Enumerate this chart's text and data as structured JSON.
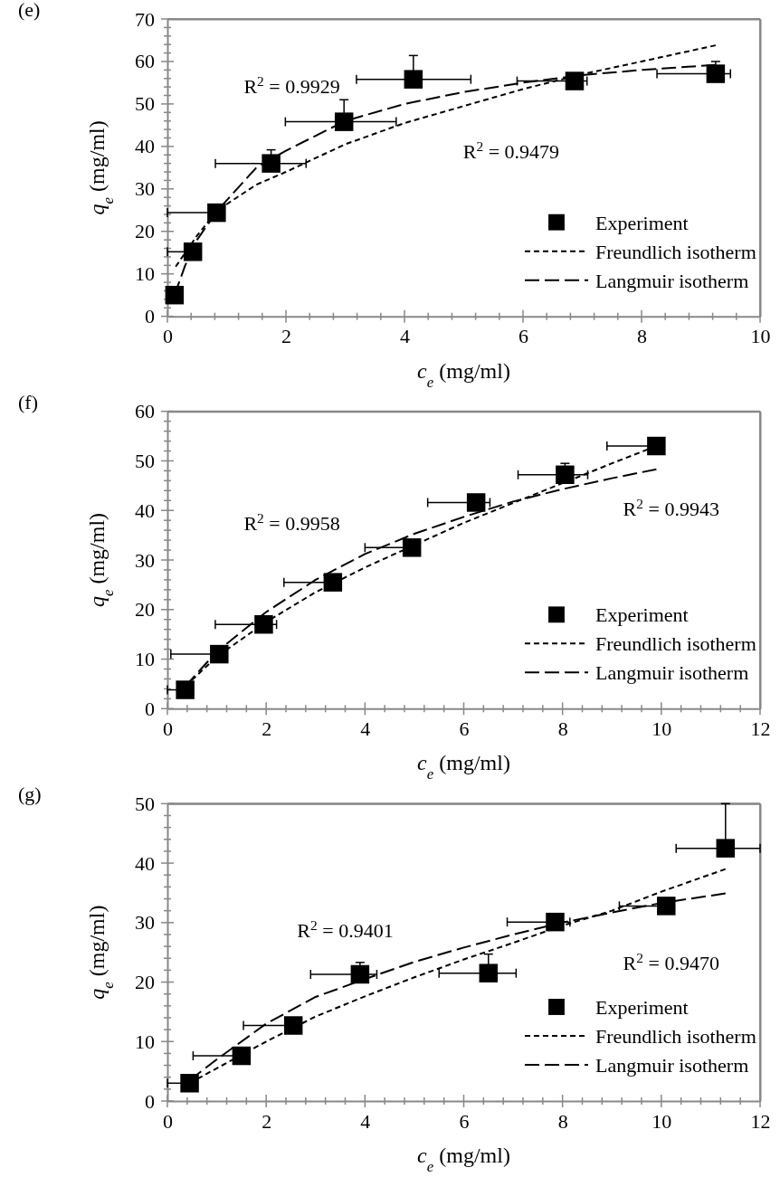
{
  "chart_data": [
    {
      "type": "scatter",
      "title": "(e)",
      "xlabel": "c$_{e}$ (mg/ml)",
      "ylabel": "q$_{e}$ (mg/ml)",
      "legend": "bottom right",
      "grid": false,
      "xlim": [
        0,
        10
      ],
      "ylim": [
        0,
        70
      ],
      "xticks": [
        0,
        {
          "value": 0.4,
          "label": null
        },
        {
          "value": 0.8,
          "label": null
        },
        {
          "value": 1.2,
          "label": null
        },
        {
          "value": 1.6,
          "label": null
        },
        2,
        {
          "value": 2.4,
          "label": null
        },
        {
          "value": 2.8,
          "label": null
        },
        {
          "value": 3.2,
          "label": null
        },
        {
          "value": 3.6,
          "label": null
        },
        4,
        {
          "value": 4.4,
          "label": null
        },
        {
          "value": 4.8,
          "label": null
        },
        {
          "value": 5.2,
          "label": null
        },
        {
          "value": 5.6,
          "label": null
        },
        6,
        {
          "value": 6.4,
          "label": null
        },
        {
          "value": 6.8,
          "label": null
        },
        {
          "value": 7.2,
          "label": null
        },
        {
          "value": 7.6,
          "label": null
        },
        8,
        {
          "value": 8.4,
          "label": null
        },
        {
          "value": 8.8,
          "label": null
        },
        {
          "value": 9.2,
          "label": null
        },
        {
          "value": 9.6,
          "label": null
        },
        10
      ],
      "yticks": [
        0,
        {
          "value": 2,
          "label": null
        },
        {
          "value": 4,
          "label": null
        },
        {
          "value": 6,
          "label": null
        },
        {
          "value": 8,
          "label": null
        },
        10,
        {
          "value": 12,
          "label": null
        },
        {
          "value": 14,
          "label": null
        },
        {
          "value": 16,
          "label": null
        },
        {
          "value": 18,
          "label": null
        },
        20,
        {
          "value": 22,
          "label": null
        },
        {
          "value": 24,
          "label": null
        },
        {
          "value": 26,
          "label": null
        },
        {
          "value": 28,
          "label": null
        },
        30,
        {
          "value": 32,
          "label": null
        },
        {
          "value": 34,
          "label": null
        },
        {
          "value": 36,
          "label": null
        },
        {
          "value": 38,
          "label": null
        },
        40,
        {
          "value": 42,
          "label": null
        },
        {
          "value": 44,
          "label": null
        },
        {
          "value": 46,
          "label": null
        },
        {
          "value": 48,
          "label": null
        },
        50,
        {
          "value": 52,
          "label": null
        },
        {
          "value": 54,
          "label": null
        },
        {
          "value": 56,
          "label": null
        },
        {
          "value": 58,
          "label": null
        },
        60,
        {
          "value": 62,
          "label": null
        },
        {
          "value": 64,
          "label": null
        },
        {
          "value": 66,
          "label": null
        },
        {
          "value": 68,
          "label": null
        },
        70
      ],
      "annotations": [
        "R$^{2}$ = 0.9929",
        "R$^{2}$ = 0.9479"
      ],
      "series": [
        {
          "name": "Experiment",
          "type": "scatter",
          "marker": "square",
          "color": "#000000",
          "x": [
            0.12,
            0.43,
            0.83,
            1.75,
            2.98,
            4.15,
            6.87,
            9.25
          ],
          "values": [
            5,
            15.2,
            24.4,
            36,
            45.8,
            55.8,
            55.4,
            57.1
          ],
          "xerrors": [
            null,
            [
              0,
              0.43
            ],
            [
              0,
              0.83
            ],
            [
              0.81,
              2.34
            ],
            [
              1.99,
              3.86
            ],
            [
              3.19,
              5.12
            ],
            [
              5.9,
              7.08
            ],
            [
              8.26,
              9.5
            ]
          ],
          "errors": [
            null,
            null,
            null,
            [
              36,
              39.2
            ],
            [
              45.8,
              51
            ],
            [
              55.8,
              61.4
            ],
            null,
            [
              57.1,
              60
            ]
          ]
        },
        {
          "name": "Freundlich isotherm",
          "type": "line",
          "line_style": "dotted",
          "color": "#000000",
          "x": [
            0.14,
            0.5,
            0.85,
            1.5,
            2,
            3,
            4,
            5,
            6,
            7,
            8,
            9.25
          ],
          "values": [
            11.7,
            19,
            25,
            31,
            34,
            40.5,
            45.5,
            49.5,
            53.5,
            57,
            60,
            63.8
          ]
        },
        {
          "name": "Langmuir isotherm",
          "type": "line",
          "line_style": "dashed",
          "color": "#000000",
          "x": [
            0.12,
            0.3,
            0.5,
            0.85,
            1.5,
            2,
            3,
            4,
            5,
            6,
            7,
            8,
            9.25
          ],
          "values": [
            5,
            12,
            18,
            25,
            35,
            39,
            46,
            50,
            52.8,
            55,
            56.8,
            58,
            59.2
          ]
        }
      ]
    },
    {
      "type": "scatter",
      "title": "(f)",
      "xlabel": "c$_{e}$ (mg/ml)",
      "ylabel": "q$_{e}$ (mg/ml)",
      "legend": "bottom right",
      "grid": false,
      "xlim": [
        0,
        12
      ],
      "ylim": [
        0,
        60
      ],
      "xticks": [
        0,
        {
          "value": 0.4,
          "label": null
        },
        {
          "value": 0.8,
          "label": null
        },
        {
          "value": 1.2,
          "label": null
        },
        {
          "value": 1.6,
          "label": null
        },
        2,
        {
          "value": 2.4,
          "label": null
        },
        {
          "value": 2.8,
          "label": null
        },
        {
          "value": 3.2,
          "label": null
        },
        {
          "value": 3.6,
          "label": null
        },
        4,
        {
          "value": 4.4,
          "label": null
        },
        {
          "value": 4.8,
          "label": null
        },
        {
          "value": 5.2,
          "label": null
        },
        {
          "value": 5.6,
          "label": null
        },
        6,
        {
          "value": 6.4,
          "label": null
        },
        {
          "value": 6.8,
          "label": null
        },
        {
          "value": 7.2,
          "label": null
        },
        {
          "value": 7.6,
          "label": null
        },
        8,
        {
          "value": 8.4,
          "label": null
        },
        {
          "value": 8.8,
          "label": null
        },
        {
          "value": 9.2,
          "label": null
        },
        {
          "value": 9.6,
          "label": null
        },
        10,
        {
          "value": 10.4,
          "label": null
        },
        {
          "value": 10.8,
          "label": null
        },
        {
          "value": 11.2,
          "label": null
        },
        {
          "value": 11.6,
          "label": null
        },
        12
      ],
      "yticks": [
        0,
        {
          "value": 2,
          "label": null
        },
        {
          "value": 4,
          "label": null
        },
        {
          "value": 6,
          "label": null
        },
        {
          "value": 8,
          "label": null
        },
        10,
        {
          "value": 12,
          "label": null
        },
        {
          "value": 14,
          "label": null
        },
        {
          "value": 16,
          "label": null
        },
        {
          "value": 18,
          "label": null
        },
        20,
        {
          "value": 22,
          "label": null
        },
        {
          "value": 24,
          "label": null
        },
        {
          "value": 26,
          "label": null
        },
        {
          "value": 28,
          "label": null
        },
        30,
        {
          "value": 32,
          "label": null
        },
        {
          "value": 34,
          "label": null
        },
        {
          "value": 36,
          "label": null
        },
        {
          "value": 38,
          "label": null
        },
        40,
        {
          "value": 42,
          "label": null
        },
        {
          "value": 44,
          "label": null
        },
        {
          "value": 46,
          "label": null
        },
        {
          "value": 48,
          "label": null
        },
        50,
        {
          "value": 52,
          "label": null
        },
        {
          "value": 54,
          "label": null
        },
        {
          "value": 56,
          "label": null
        },
        {
          "value": 58,
          "label": null
        },
        60
      ],
      "annotations": [
        "R$^{2}$ = 0.9958",
        "R$^{2}$ = 0.9943"
      ],
      "series": [
        {
          "name": "Experiment",
          "type": "scatter",
          "marker": "square",
          "color": "#000000",
          "x": [
            0.36,
            1.05,
            1.95,
            3.35,
            4.95,
            6.25,
            8.05,
            9.9
          ],
          "values": [
            3.8,
            11,
            17,
            25.5,
            32.5,
            41.6,
            47.2,
            53
          ],
          "xerrors": [
            [
              0,
              0.36
            ],
            [
              0.07,
              1.05
            ],
            [
              0.97,
              2.21
            ],
            [
              2.36,
              3.35
            ],
            [
              4.0,
              4.95
            ],
            [
              5.27,
              6.53
            ],
            [
              7.1,
              8.51
            ],
            [
              8.9,
              9.9
            ]
          ],
          "errors": [
            null,
            null,
            null,
            null,
            null,
            null,
            [
              47.2,
              49.5
            ],
            null
          ]
        },
        {
          "name": "Freundlich isotherm",
          "type": "line",
          "line_style": "dotted",
          "color": "#000000",
          "x": [
            0.36,
            1,
            2,
            3,
            4,
            5,
            6,
            7,
            8,
            9,
            9.9
          ],
          "values": [
            4.5,
            10.5,
            17.5,
            23.5,
            28.5,
            33,
            37.5,
            41.5,
            45.5,
            49.5,
            53
          ]
        },
        {
          "name": "Langmuir isotherm",
          "type": "line",
          "line_style": "dashed",
          "color": "#000000",
          "x": [
            0.36,
            1,
            2,
            3,
            4,
            5,
            6,
            7,
            8,
            9,
            9.9
          ],
          "values": [
            4.5,
            11.5,
            19.5,
            26,
            31.2,
            35.3,
            38.7,
            41.8,
            44.3,
            46.5,
            48.3
          ]
        }
      ]
    },
    {
      "type": "scatter",
      "title": "(g)",
      "xlabel": "c$_{e}$ (mg/ml)",
      "ylabel": "q$_{e}$ (mg/ml)",
      "legend": "bottom right",
      "grid": false,
      "xlim": [
        0,
        12
      ],
      "ylim": [
        0,
        50
      ],
      "xticks": [
        0,
        {
          "value": 0.4,
          "label": null
        },
        {
          "value": 0.8,
          "label": null
        },
        {
          "value": 1.2,
          "label": null
        },
        {
          "value": 1.6,
          "label": null
        },
        2,
        {
          "value": 2.4,
          "label": null
        },
        {
          "value": 2.8,
          "label": null
        },
        {
          "value": 3.2,
          "label": null
        },
        {
          "value": 3.6,
          "label": null
        },
        4,
        {
          "value": 4.4,
          "label": null
        },
        {
          "value": 4.8,
          "label": null
        },
        {
          "value": 5.2,
          "label": null
        },
        {
          "value": 5.6,
          "label": null
        },
        6,
        {
          "value": 6.4,
          "label": null
        },
        {
          "value": 6.8,
          "label": null
        },
        {
          "value": 7.2,
          "label": null
        },
        {
          "value": 7.6,
          "label": null
        },
        8,
        {
          "value": 8.4,
          "label": null
        },
        {
          "value": 8.8,
          "label": null
        },
        {
          "value": 9.2,
          "label": null
        },
        {
          "value": 9.6,
          "label": null
        },
        10,
        {
          "value": 10.4,
          "label": null
        },
        {
          "value": 10.8,
          "label": null
        },
        {
          "value": 11.2,
          "label": null
        },
        {
          "value": 11.6,
          "label": null
        },
        12
      ],
      "yticks": [
        0,
        {
          "value": 2,
          "label": null
        },
        {
          "value": 4,
          "label": null
        },
        {
          "value": 6,
          "label": null
        },
        {
          "value": 8,
          "label": null
        },
        10,
        {
          "value": 12,
          "label": null
        },
        {
          "value": 14,
          "label": null
        },
        {
          "value": 16,
          "label": null
        },
        {
          "value": 18,
          "label": null
        },
        20,
        {
          "value": 22,
          "label": null
        },
        {
          "value": 24,
          "label": null
        },
        {
          "value": 26,
          "label": null
        },
        {
          "value": 28,
          "label": null
        },
        30,
        {
          "value": 32,
          "label": null
        },
        {
          "value": 34,
          "label": null
        },
        {
          "value": 36,
          "label": null
        },
        {
          "value": 38,
          "label": null
        },
        40,
        {
          "value": 42,
          "label": null
        },
        {
          "value": 44,
          "label": null
        },
        {
          "value": 46,
          "label": null
        },
        {
          "value": 48,
          "label": null
        },
        50
      ],
      "annotations": [
        "R$^{2}$ = 0.9401",
        "R$^{2}$ = 0.9470"
      ],
      "series": [
        {
          "name": "Experiment",
          "type": "scatter",
          "marker": "square",
          "color": "#000000",
          "x": [
            0.45,
            1.5,
            2.55,
            3.9,
            6.5,
            7.85,
            10.1,
            11.3
          ],
          "values": [
            3,
            7.6,
            12.7,
            21.3,
            21.5,
            30.1,
            32.8,
            42.5
          ],
          "xerrors": [
            [
              0,
              0.45
            ],
            [
              0.52,
              1.5
            ],
            [
              1.54,
              2.55
            ],
            [
              2.9,
              4.24
            ],
            [
              5.5,
              7.06
            ],
            [
              6.88,
              8.15
            ],
            [
              9.15,
              10.1
            ],
            [
              10.3,
              12
            ]
          ],
          "errors": [
            null,
            null,
            null,
            [
              21.3,
              23.3
            ],
            [
              21.5,
              24.7
            ],
            null,
            null,
            [
              42.5,
              50
            ]
          ]
        },
        {
          "name": "Freundlich isotherm",
          "type": "line",
          "line_style": "dotted",
          "color": "#000000",
          "x": [
            0.45,
            1,
            2,
            3,
            4,
            5,
            6,
            7,
            8,
            9,
            10,
            11.3
          ],
          "values": [
            3,
            5.5,
            10,
            14.2,
            17.6,
            20.8,
            23.8,
            26.6,
            29.5,
            32,
            35.2,
            39
          ]
        },
        {
          "name": "Langmuir isotherm",
          "type": "line",
          "line_style": "dashed",
          "color": "#000000",
          "x": [
            0.45,
            1,
            2,
            3,
            4,
            5,
            6,
            7,
            8,
            9,
            10,
            11.3
          ],
          "values": [
            3.5,
            7,
            13,
            17.5,
            20.5,
            23.4,
            25.8,
            28,
            30,
            31.7,
            33.3,
            34.9
          ]
        }
      ]
    }
  ]
}
